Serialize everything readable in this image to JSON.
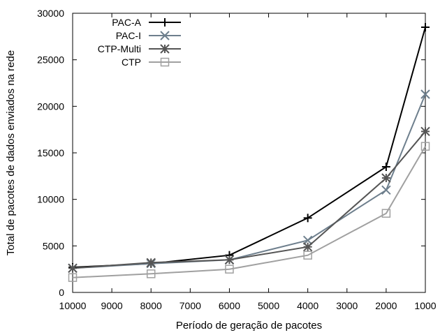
{
  "chart_data": {
    "type": "line",
    "xlabel": "Período de geração de pacotes",
    "ylabel": "Total de pacotes de dados enviados na rede",
    "xlim": [
      10000,
      1000
    ],
    "ylim": [
      0,
      30000
    ],
    "x_reversed": true,
    "xticks": [
      "10000",
      "9000",
      "8000",
      "7000",
      "6000",
      "5000",
      "4000",
      "3000",
      "2000",
      "1000"
    ],
    "yticks": [
      "0",
      "5000",
      "10000",
      "15000",
      "20000",
      "25000",
      "30000"
    ],
    "grid": false,
    "legend_position": "top-left",
    "x": [
      10000,
      8000,
      6000,
      4000,
      2000,
      1000
    ],
    "series": [
      {
        "name": "PAC-A",
        "marker": "plus",
        "color": "#000000",
        "values": [
          2700,
          3100,
          4000,
          8000,
          13500,
          28500
        ]
      },
      {
        "name": "PAC-I",
        "marker": "x",
        "color": "#6e7f8d",
        "values": [
          2600,
          3100,
          3500,
          5600,
          11000,
          21300
        ]
      },
      {
        "name": "CTP-Multi",
        "marker": "star",
        "color": "#555555",
        "values": [
          2600,
          3200,
          3500,
          4900,
          12300,
          17300
        ]
      },
      {
        "name": "CTP",
        "marker": "square",
        "color": "#a0a0a0",
        "values": [
          1600,
          2000,
          2500,
          4000,
          8500,
          15700
        ]
      }
    ]
  }
}
